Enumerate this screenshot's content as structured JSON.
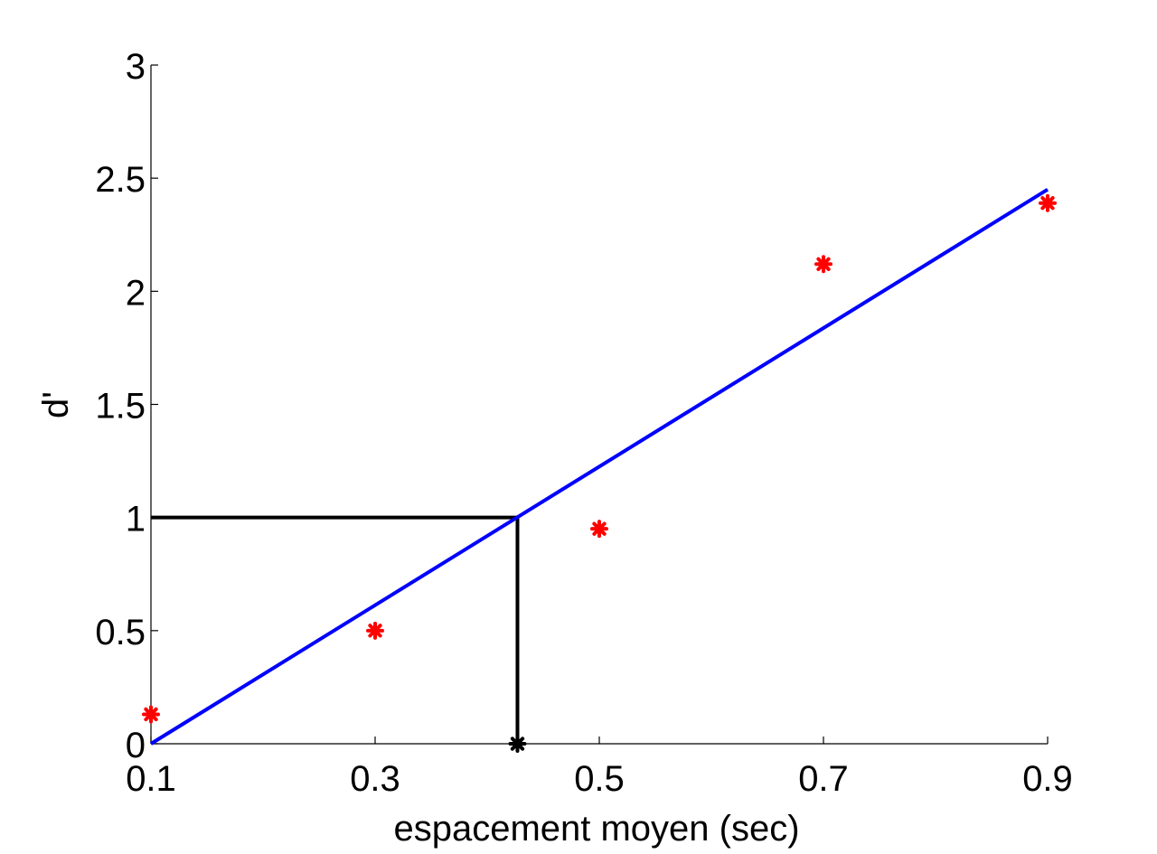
{
  "chart_data": {
    "type": "scatter",
    "xlabel": "espacement moyen (sec)",
    "ylabel": "d'",
    "xlim": [
      0.1,
      0.9
    ],
    "ylim": [
      0,
      3
    ],
    "xticks": [
      "0.1",
      "0.3",
      "0.5",
      "0.7",
      "0.9"
    ],
    "yticks": [
      "0",
      "0.5",
      "1",
      "1.5",
      "2",
      "2.5",
      "3"
    ],
    "grid": false,
    "points": {
      "color": "#ff0000",
      "marker": "asterisk",
      "x": [
        0.1,
        0.3,
        0.5,
        0.7,
        0.9
      ],
      "y": [
        0.13,
        0.5,
        0.95,
        2.12,
        2.39
      ]
    },
    "fit_line": {
      "color": "#0000ff",
      "x": [
        0.1,
        0.9
      ],
      "y": [
        0.0,
        2.45
      ]
    },
    "threshold": {
      "color": "#000000",
      "x": 0.427,
      "y": 1.0
    }
  }
}
